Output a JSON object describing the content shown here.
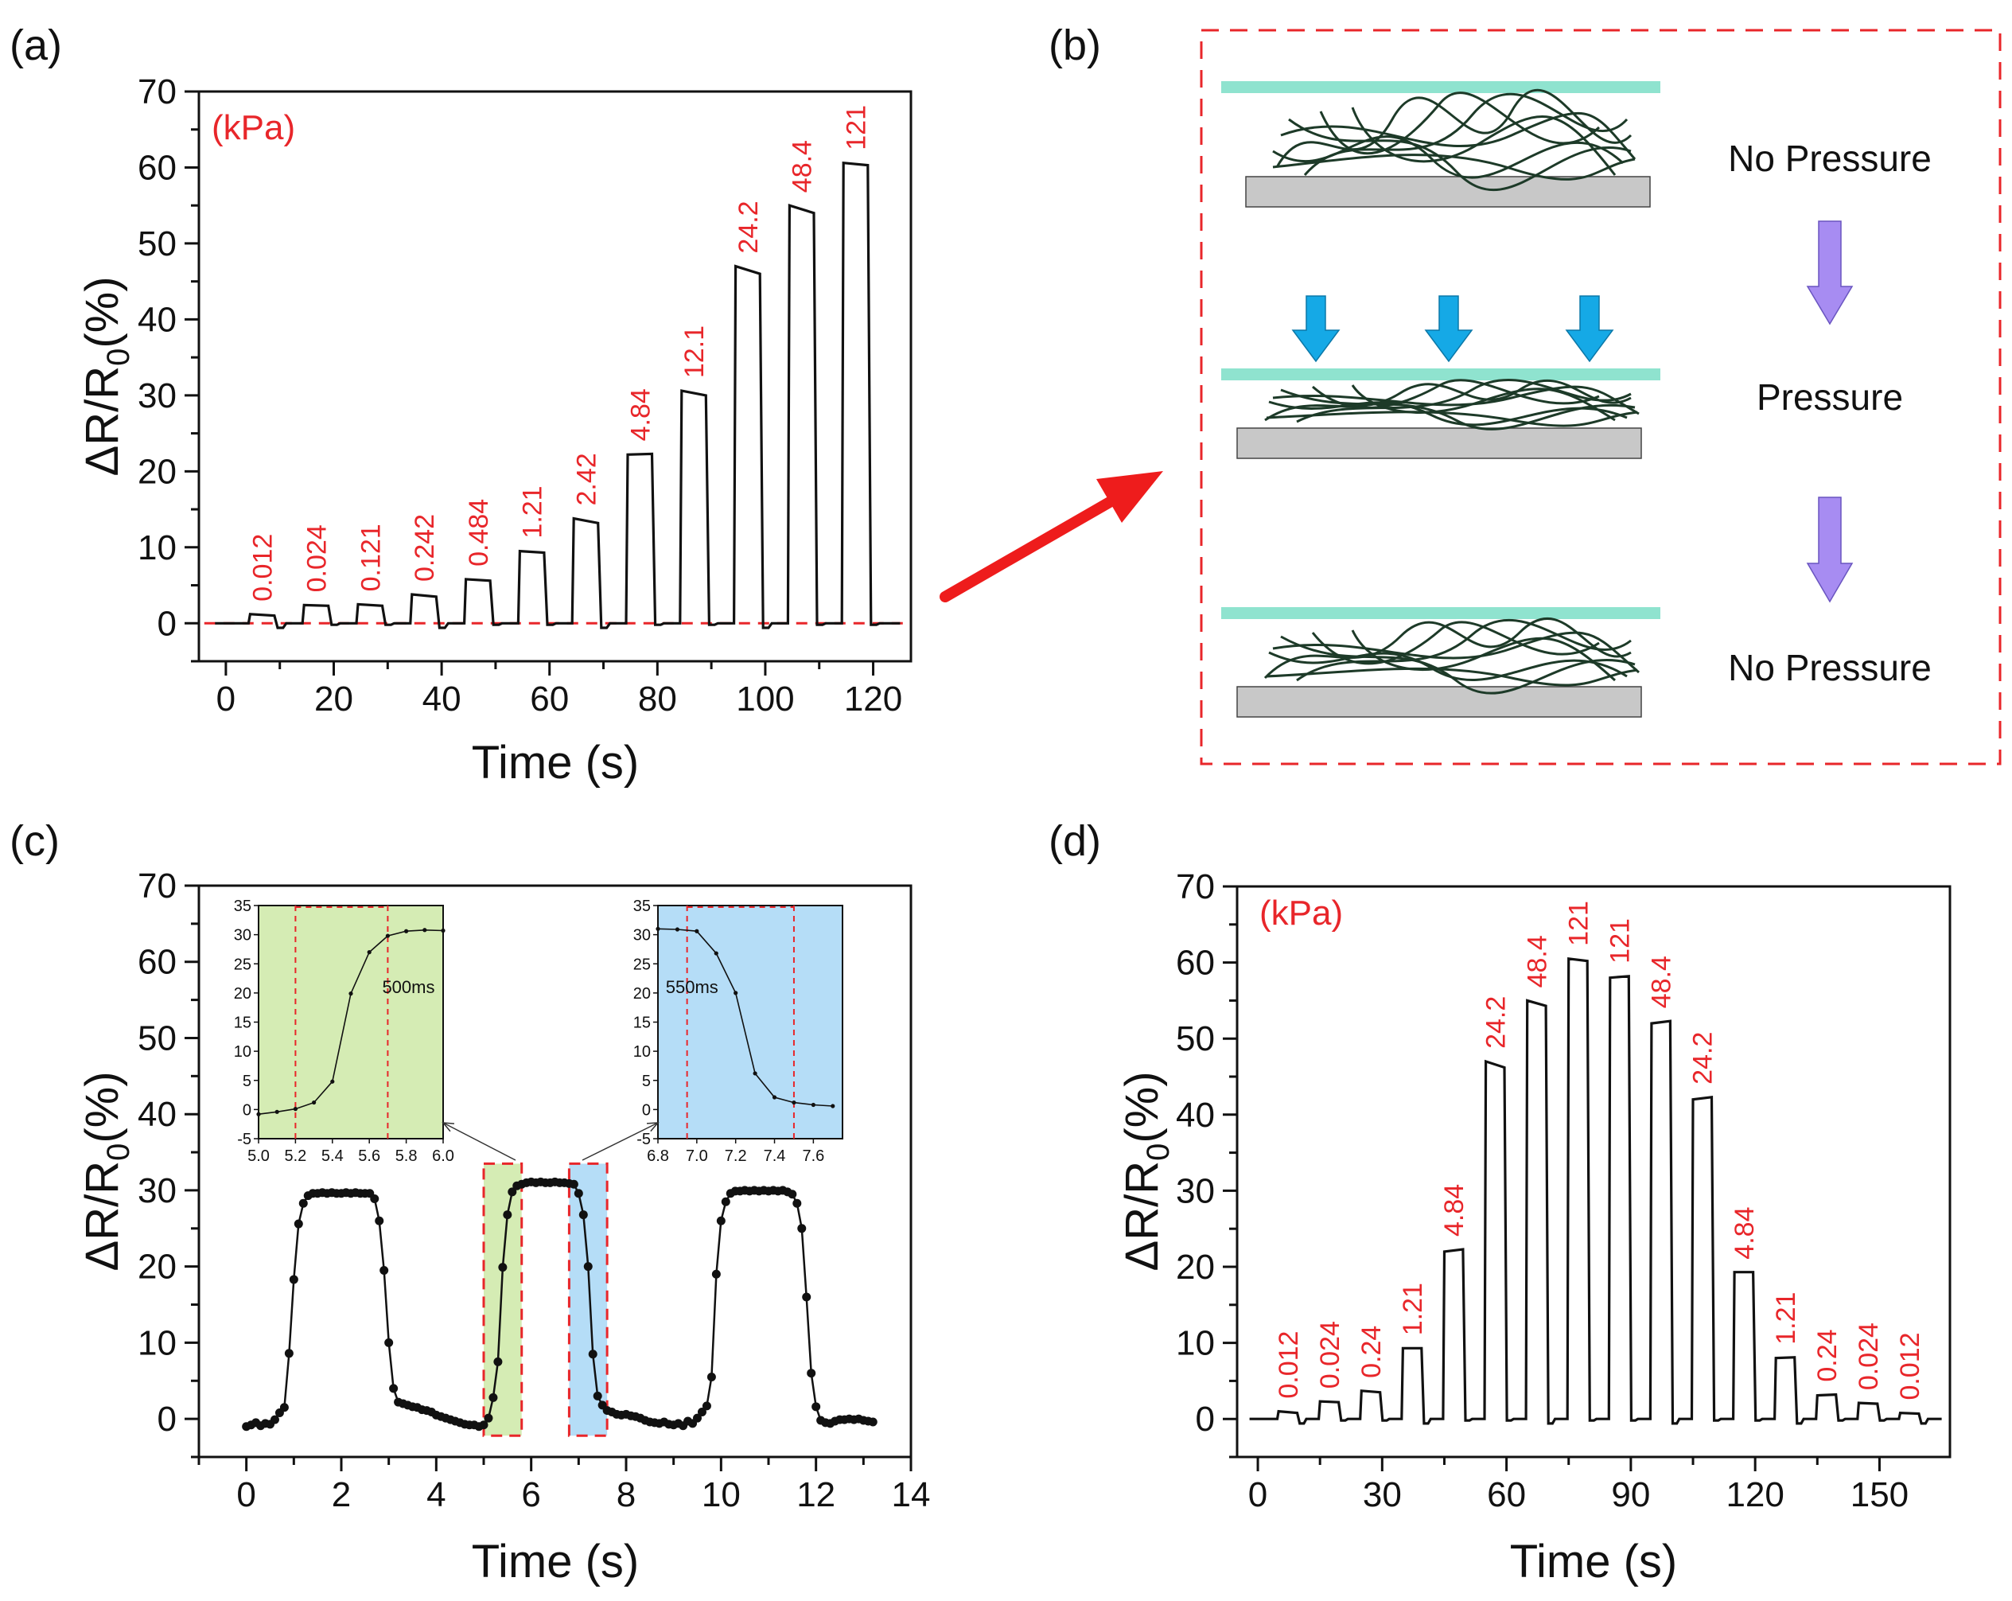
{
  "panels": {
    "a": {
      "label": "(a)"
    },
    "b": {
      "label": "(b)",
      "stages": [
        "No Pressure",
        "Pressure",
        "No Pressure"
      ]
    },
    "c": {
      "label": "(c)"
    },
    "d": {
      "label": "(d)"
    }
  },
  "colors": {
    "red": "#e8262a",
    "plate": "#8fe3cf",
    "base": "#c8c8c8",
    "fiber": "#1d3a28",
    "arrowBlue": "#15a9e6",
    "arrowPurple": "#a78cf2",
    "green": "#d5ecb4",
    "blue": "#b5ddf7"
  },
  "chart_data": [
    {
      "id": "a",
      "type": "line",
      "xlabel": "Time (s)",
      "ylabel": "ΔR/R0(%)",
      "unit_label": "(kPa)",
      "xlim": [
        -5,
        127
      ],
      "ylim": [
        -5,
        70
      ],
      "xticks": [
        0,
        20,
        40,
        60,
        80,
        100,
        120
      ],
      "yticks": [
        0,
        10,
        20,
        30,
        40,
        50,
        60,
        70
      ],
      "pulses": [
        {
          "t0": 4.5,
          "t1": 9,
          "top": 1.2,
          "top_end": 1.0,
          "label": "0.012"
        },
        {
          "t0": 14.5,
          "t1": 19,
          "top": 2.4,
          "top_end": 2.3,
          "label": "0.024"
        },
        {
          "t0": 24.5,
          "t1": 29,
          "top": 2.5,
          "top_end": 2.3,
          "label": "0.121"
        },
        {
          "t0": 34.5,
          "t1": 39,
          "top": 3.8,
          "top_end": 3.5,
          "label": "0.242"
        },
        {
          "t0": 44.5,
          "t1": 49,
          "top": 5.8,
          "top_end": 5.6,
          "label": "0.484"
        },
        {
          "t0": 54.5,
          "t1": 59,
          "top": 9.5,
          "top_end": 9.3,
          "label": "1.21"
        },
        {
          "t0": 64.5,
          "t1": 69,
          "top": 13.8,
          "top_end": 13.2,
          "label": "2.42"
        },
        {
          "t0": 74.5,
          "t1": 79,
          "top": 22.2,
          "top_end": 22.3,
          "label": "4.84"
        },
        {
          "t0": 84.5,
          "t1": 89,
          "top": 30.6,
          "top_end": 30.0,
          "label": "12.1"
        },
        {
          "t0": 94.5,
          "t1": 99,
          "top": 47.0,
          "top_end": 46.0,
          "label": "24.2"
        },
        {
          "t0": 104.5,
          "t1": 109,
          "top": 55.0,
          "top_end": 54.0,
          "label": "48.4"
        },
        {
          "t0": 114.5,
          "t1": 119,
          "top": 60.6,
          "top_end": 60.3,
          "label": "121"
        }
      ]
    },
    {
      "id": "c",
      "type": "scatter",
      "xlabel": "Time (s)",
      "ylabel": "ΔR/R0(%)",
      "xlim": [
        -1,
        14
      ],
      "ylim": [
        -5,
        70
      ],
      "xticks": [
        0,
        2,
        4,
        6,
        8,
        10,
        12,
        14
      ],
      "yticks": [
        0,
        10,
        20,
        30,
        40,
        50,
        60,
        70
      ],
      "x": [
        0,
        0.1,
        0.2,
        0.3,
        0.4,
        0.5,
        0.6,
        0.7,
        0.8,
        0.9,
        1.0,
        1.1,
        1.2,
        1.3,
        1.4,
        1.5,
        1.6,
        1.7,
        1.8,
        1.9,
        2.0,
        2.1,
        2.2,
        2.3,
        2.4,
        2.5,
        2.6,
        2.7,
        2.8,
        2.9,
        3.0,
        3.1,
        3.2,
        3.3,
        3.4,
        3.5,
        3.6,
        3.7,
        3.8,
        3.9,
        4.0,
        4.1,
        4.2,
        4.3,
        4.4,
        4.5,
        4.6,
        4.7,
        4.8,
        4.9,
        5.0,
        5.1,
        5.2,
        5.3,
        5.4,
        5.5,
        5.6,
        5.7,
        5.8,
        5.9,
        6.0,
        6.1,
        6.2,
        6.3,
        6.4,
        6.5,
        6.6,
        6.7,
        6.8,
        6.9,
        7.0,
        7.1,
        7.2,
        7.3,
        7.4,
        7.5,
        7.6,
        7.7,
        7.8,
        7.9,
        8.0,
        8.1,
        8.2,
        8.3,
        8.4,
        8.5,
        8.6,
        8.7,
        8.8,
        8.9,
        9.0,
        9.1,
        9.2,
        9.3,
        9.4,
        9.5,
        9.6,
        9.7,
        9.8,
        9.9,
        10.0,
        10.1,
        10.2,
        10.3,
        10.4,
        10.5,
        10.6,
        10.7,
        10.8,
        10.9,
        11.0,
        11.1,
        11.2,
        11.3,
        11.4,
        11.5,
        11.6,
        11.7,
        11.8,
        11.9,
        12.0,
        12.1,
        12.2,
        12.3,
        12.4,
        12.5,
        12.6,
        12.7,
        12.8,
        12.9,
        13.0,
        13.1,
        13.2
      ],
      "y": [
        -1.0,
        -0.8,
        -0.5,
        -0.9,
        -0.6,
        -0.7,
        -0.1,
        0.8,
        1.5,
        8.6,
        18.3,
        25.6,
        28.3,
        29.3,
        29.6,
        29.6,
        29.7,
        29.6,
        29.7,
        29.6,
        29.6,
        29.7,
        29.6,
        29.7,
        29.6,
        29.6,
        29.6,
        28.9,
        26.0,
        19.5,
        10.0,
        4.0,
        2.2,
        2.0,
        1.8,
        1.6,
        1.5,
        1.2,
        1.1,
        0.9,
        0.5,
        0.3,
        0.1,
        -0.1,
        -0.3,
        -0.5,
        -0.7,
        -0.8,
        -0.8,
        -1.0,
        -0.8,
        0.1,
        2.8,
        7.5,
        19.9,
        26.8,
        29.8,
        30.6,
        30.8,
        31.0,
        31.1,
        31.0,
        31.1,
        31.0,
        31.0,
        31.1,
        31.0,
        31.0,
        30.9,
        30.8,
        29.6,
        26.8,
        20.0,
        8.5,
        3.0,
        1.8,
        1.1,
        0.9,
        0.6,
        0.5,
        0.6,
        0.4,
        0.3,
        0.1,
        -0.2,
        -0.4,
        -0.5,
        -0.6,
        -0.4,
        -0.7,
        -0.8,
        -0.6,
        -0.9,
        -0.3,
        -0.6,
        0.1,
        0.9,
        1.7,
        5.5,
        19.0,
        26.0,
        28.5,
        29.6,
        29.9,
        29.9,
        30.0,
        29.9,
        30.0,
        29.9,
        30.0,
        29.9,
        30.0,
        29.9,
        30.0,
        29.8,
        29.5,
        28.3,
        25.0,
        16.0,
        6.0,
        1.6,
        -0.2,
        -0.5,
        -0.6,
        -0.3,
        -0.1,
        -0.1,
        0,
        -0.1,
        0,
        -0.2,
        -0.3,
        -0.4
      ],
      "highlights": [
        {
          "x0": 5.0,
          "x1": 5.8,
          "color": "green"
        },
        {
          "x0": 6.8,
          "x1": 7.6,
          "color": "blue"
        }
      ],
      "insets": [
        {
          "xlim": [
            5.0,
            6.0
          ],
          "ylim": [
            -5,
            35
          ],
          "xticks": [
            "5.0",
            "5.2",
            "5.4",
            "5.6",
            "5.8",
            "6.0"
          ],
          "yticks": [
            "-5",
            "0",
            "5",
            "10",
            "15",
            "20",
            "25",
            "30",
            "35"
          ],
          "x": [
            5.0,
            5.1,
            5.2,
            5.3,
            5.4,
            5.5,
            5.6,
            5.7,
            5.8,
            5.9,
            6.0
          ],
          "y": [
            -0.8,
            -0.4,
            0.1,
            1.2,
            4.8,
            19.9,
            27.0,
            29.8,
            30.6,
            30.8,
            30.7
          ],
          "markers": [
            5.2,
            5.7
          ],
          "annotation": "500ms"
        },
        {
          "xlim": [
            6.8,
            7.75
          ],
          "ylim": [
            -5,
            35
          ],
          "xticks": [
            "6.8",
            "7.0",
            "7.2",
            "7.4",
            "7.6"
          ],
          "yticks": [
            "-5",
            "0",
            "5",
            "10",
            "15",
            "20",
            "25",
            "30",
            "35"
          ],
          "x": [
            6.8,
            6.9,
            7.0,
            7.1,
            7.2,
            7.3,
            7.4,
            7.5,
            7.6,
            7.7
          ],
          "y": [
            31.0,
            30.9,
            30.6,
            26.8,
            20.0,
            6.2,
            2.1,
            1.2,
            0.8,
            0.6
          ],
          "markers": [
            6.95,
            7.5
          ],
          "annotation": "550ms"
        }
      ]
    },
    {
      "id": "d",
      "type": "line",
      "xlabel": "Time (s)",
      "ylabel": "ΔR/R0(%)",
      "unit_label": "(kPa)",
      "xlim": [
        -5,
        167
      ],
      "ylim": [
        -5,
        70
      ],
      "xticks": [
        0,
        30,
        60,
        90,
        120,
        150
      ],
      "yticks": [
        0,
        10,
        20,
        30,
        40,
        50,
        60,
        70
      ],
      "pulses": [
        {
          "t0": 5,
          "t1": 9.5,
          "top": 1.0,
          "top_end": 0.8,
          "label": "0.012"
        },
        {
          "t0": 15,
          "t1": 19.5,
          "top": 2.3,
          "top_end": 2.2,
          "label": "0.024"
        },
        {
          "t0": 25,
          "t1": 29.5,
          "top": 3.7,
          "top_end": 3.5,
          "label": "0.24"
        },
        {
          "t0": 35,
          "t1": 39.5,
          "top": 9.3,
          "top_end": 9.3,
          "label": "1.21"
        },
        {
          "t0": 45,
          "t1": 49.5,
          "top": 22.0,
          "top_end": 22.3,
          "label": "4.84"
        },
        {
          "t0": 55,
          "t1": 59.5,
          "top": 47.0,
          "top_end": 46.2,
          "label": "24.2"
        },
        {
          "t0": 65,
          "t1": 69.5,
          "top": 55.0,
          "top_end": 54.3,
          "label": "48.4"
        },
        {
          "t0": 75,
          "t1": 79.5,
          "top": 60.5,
          "top_end": 60.2,
          "label": "121"
        },
        {
          "t0": 85,
          "t1": 89.5,
          "top": 58.0,
          "top_end": 58.2,
          "label": "121"
        },
        {
          "t0": 95,
          "t1": 99.5,
          "top": 52.0,
          "top_end": 52.3,
          "label": "48.4"
        },
        {
          "t0": 105,
          "t1": 109.5,
          "top": 42.0,
          "top_end": 42.3,
          "label": "24.2"
        },
        {
          "t0": 115,
          "t1": 119.5,
          "top": 19.3,
          "top_end": 19.3,
          "label": "4.84"
        },
        {
          "t0": 125,
          "t1": 129.5,
          "top": 8.0,
          "top_end": 8.1,
          "label": "1.21"
        },
        {
          "t0": 135,
          "t1": 139.5,
          "top": 3.1,
          "top_end": 3.2,
          "label": "0.24"
        },
        {
          "t0": 145,
          "t1": 149.5,
          "top": 2.1,
          "top_end": 2.0,
          "label": "0.024"
        },
        {
          "t0": 155,
          "t1": 159.5,
          "top": 0.8,
          "top_end": 0.7,
          "label": "0.012"
        }
      ]
    }
  ]
}
